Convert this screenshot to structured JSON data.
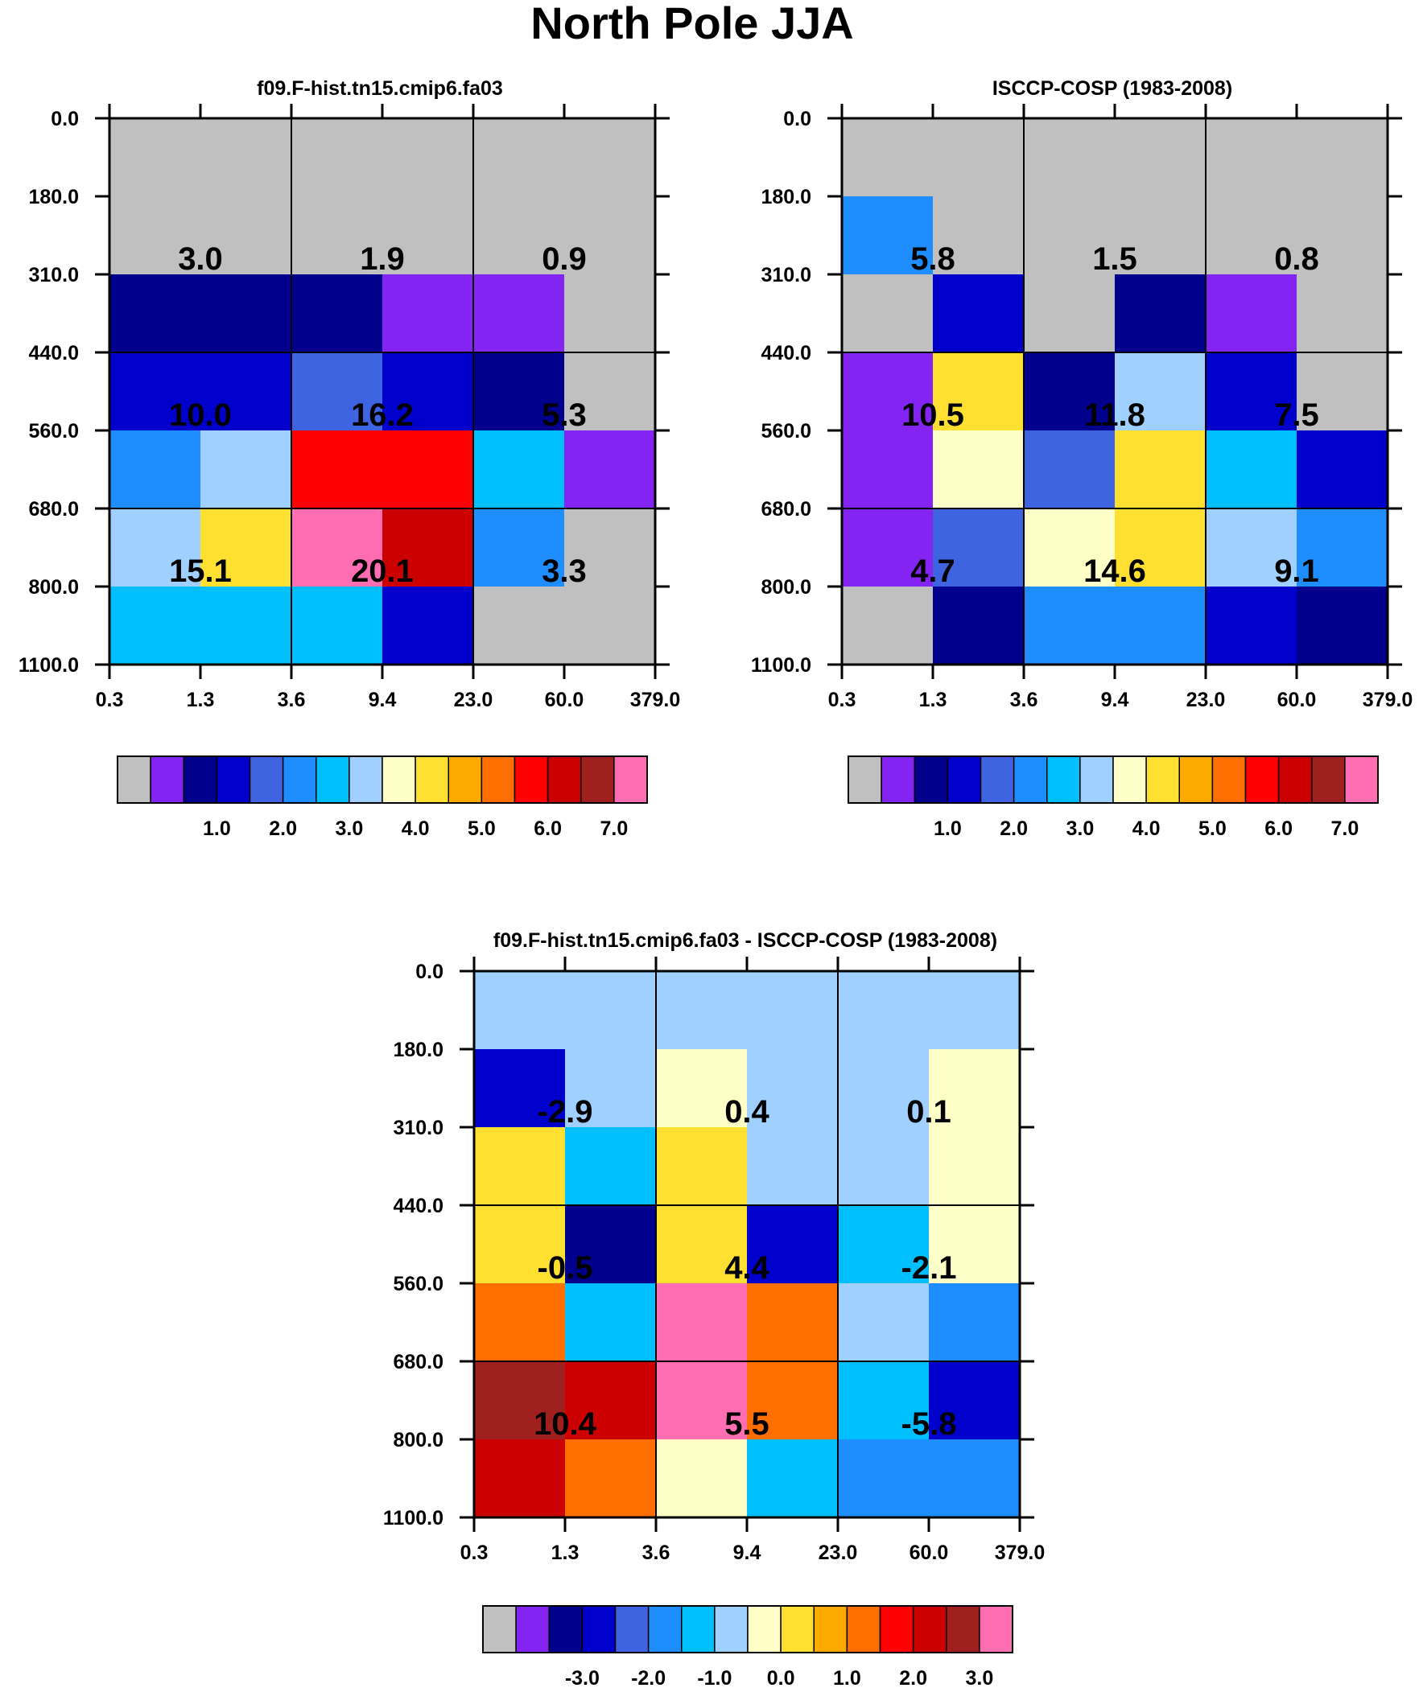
{
  "title": "North Pole JJA",
  "palette": [
    "#c0c0c0",
    "#8424f2",
    "#00008c",
    "#0000cd",
    "#3f64e1",
    "#1e8eff",
    "#00bfff",
    "#a0d0ff",
    "#ffffc8",
    "#ffdf30",
    "#ffaa00",
    "#ff6e00",
    "#ff0000",
    "#cc0000",
    "#a02020",
    "#ff6eb3"
  ],
  "chart_data": [
    {
      "type": "heatmap",
      "title": "f09.F-hist.tn15.cmip6.fa03",
      "x_ticks": [
        "0.3",
        "1.3",
        "3.6",
        "9.4",
        "23.0",
        "60.0",
        "379.0"
      ],
      "y_ticks": [
        "0.0",
        "180.0",
        "310.0",
        "440.0",
        "560.0",
        "680.0",
        "800.0",
        "1100.0"
      ],
      "cells": [
        [
          0,
          0,
          0,
          0,
          0,
          0
        ],
        [
          0,
          0,
          0,
          0,
          0,
          0
        ],
        [
          2,
          2,
          2,
          1,
          1,
          0
        ],
        [
          3,
          3,
          4,
          3,
          2,
          0
        ],
        [
          5,
          7,
          12,
          12,
          6,
          1
        ],
        [
          7,
          9,
          15,
          13,
          5,
          0
        ],
        [
          6,
          6,
          6,
          3,
          0,
          0
        ]
      ],
      "block_values": [
        [
          "3.0",
          "1.9",
          "0.9"
        ],
        [
          "10.0",
          "16.2",
          "5.3"
        ],
        [
          "15.1",
          "20.1",
          "3.3"
        ]
      ],
      "legend_labels": [
        "1.0",
        "2.0",
        "3.0",
        "4.0",
        "5.0",
        "6.0",
        "7.0"
      ]
    },
    {
      "type": "heatmap",
      "title": "ISCCP-COSP (1983-2008)",
      "x_ticks": [
        "0.3",
        "1.3",
        "3.6",
        "9.4",
        "23.0",
        "60.0",
        "379.0"
      ],
      "y_ticks": [
        "0.0",
        "180.0",
        "310.0",
        "440.0",
        "560.0",
        "680.0",
        "800.0",
        "1100.0"
      ],
      "cells": [
        [
          0,
          0,
          0,
          0,
          0,
          0
        ],
        [
          5,
          0,
          0,
          0,
          0,
          0
        ],
        [
          0,
          3,
          0,
          2,
          1,
          0
        ],
        [
          1,
          9,
          2,
          7,
          3,
          0
        ],
        [
          1,
          8,
          4,
          9,
          6,
          3
        ],
        [
          1,
          4,
          8,
          9,
          7,
          5
        ],
        [
          0,
          2,
          5,
          5,
          3,
          2
        ]
      ],
      "block_values": [
        [
          "5.8",
          "1.5",
          "0.8"
        ],
        [
          "10.5",
          "11.8",
          "7.5"
        ],
        [
          "4.7",
          "14.6",
          "9.1"
        ]
      ],
      "legend_labels": [
        "1.0",
        "2.0",
        "3.0",
        "4.0",
        "5.0",
        "6.0",
        "7.0"
      ]
    },
    {
      "type": "heatmap",
      "title": "f09.F-hist.tn15.cmip6.fa03 - ISCCP-COSP (1983-2008)",
      "x_ticks": [
        "0.3",
        "1.3",
        "3.6",
        "9.4",
        "23.0",
        "60.0",
        "379.0"
      ],
      "y_ticks": [
        "0.0",
        "180.0",
        "310.0",
        "440.0",
        "560.0",
        "680.0",
        "800.0",
        "1100.0"
      ],
      "cells": [
        [
          7,
          7,
          7,
          7,
          7,
          7
        ],
        [
          3,
          7,
          8,
          7,
          7,
          8
        ],
        [
          9,
          6,
          9,
          7,
          7,
          8
        ],
        [
          9,
          2,
          9,
          3,
          6,
          8
        ],
        [
          11,
          6,
          15,
          11,
          7,
          5
        ],
        [
          14,
          13,
          15,
          11,
          6,
          3
        ],
        [
          13,
          11,
          8,
          6,
          5,
          5
        ]
      ],
      "block_values": [
        [
          "-2.9",
          "0.4",
          "0.1"
        ],
        [
          "-0.5",
          "4.4",
          "-2.1"
        ],
        [
          "10.4",
          "5.5",
          "-5.8"
        ]
      ],
      "legend_labels": [
        "-3.0",
        "-2.0",
        "-1.0",
        "0.0",
        "1.0",
        "2.0",
        "3.0"
      ]
    }
  ]
}
